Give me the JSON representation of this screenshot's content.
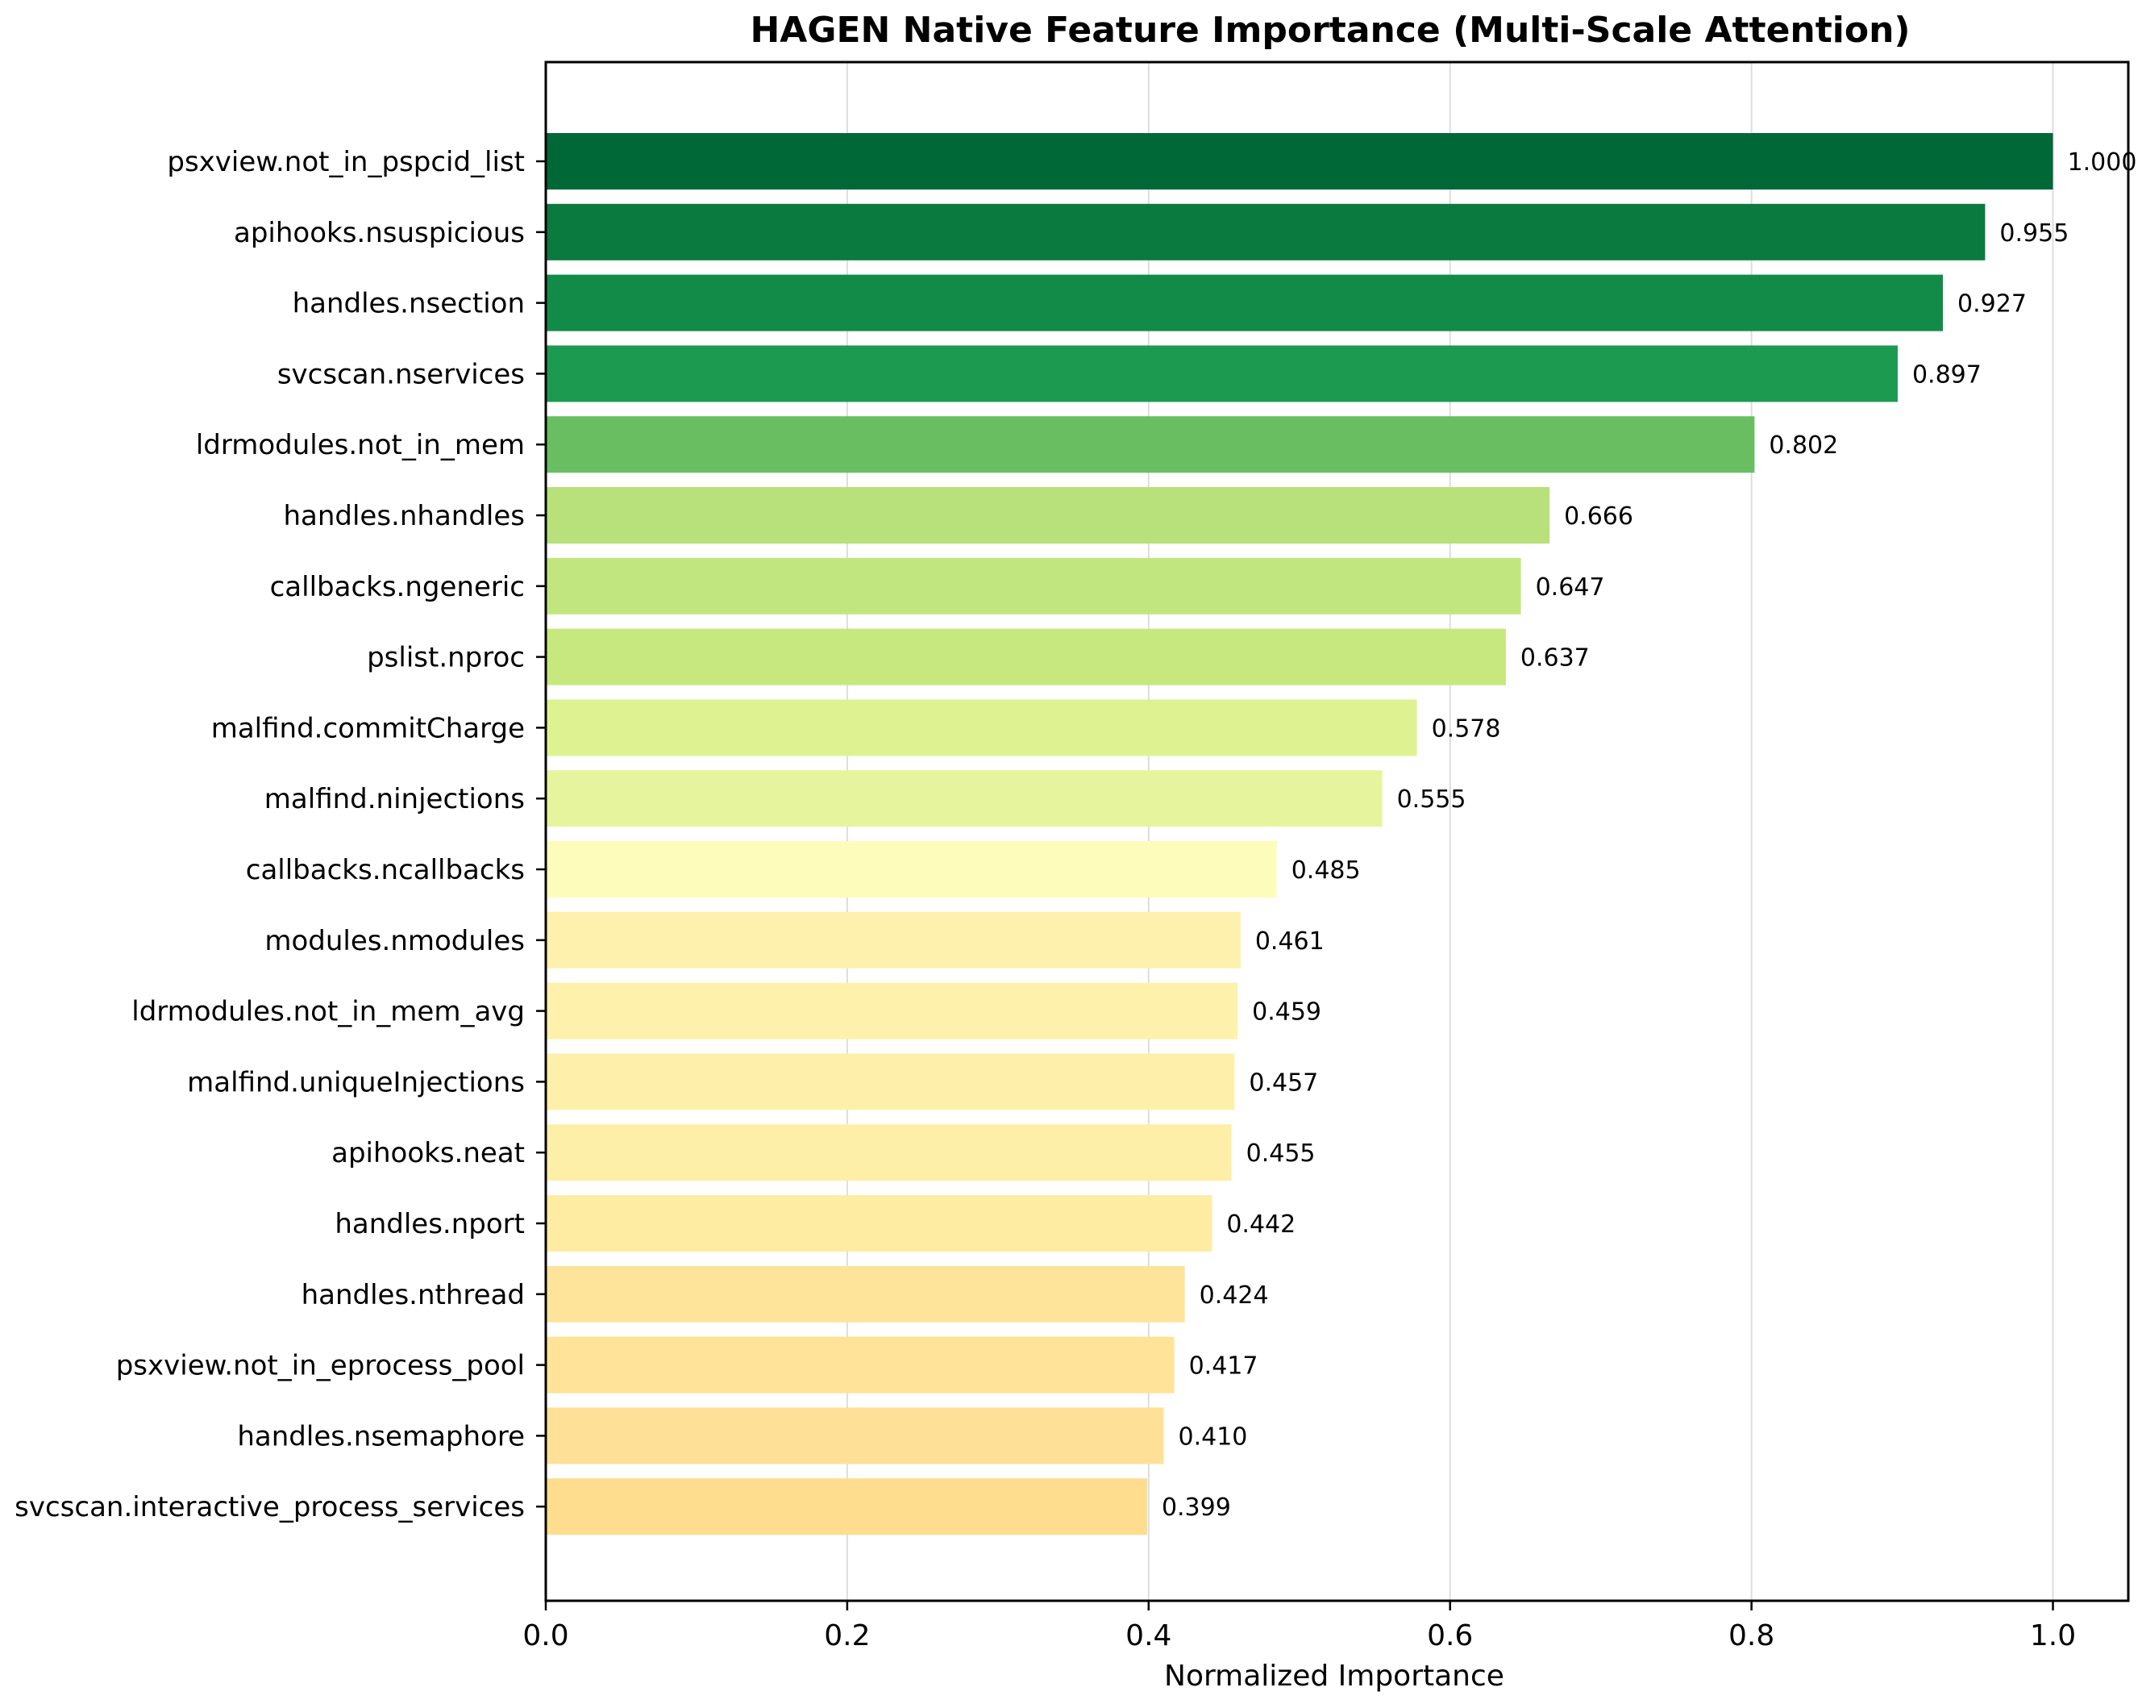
{
  "chart_data": {
    "type": "bar",
    "orientation": "horizontal",
    "title": "HAGEN Native Feature Importance (Multi-Scale Attention)",
    "xlabel": "Normalized Importance",
    "ylabel": "",
    "xlim": [
      0.0,
      1.05
    ],
    "xticks": [
      0.0,
      0.2,
      0.4,
      0.6,
      0.8,
      1.0
    ],
    "xtick_labels": [
      "0.0",
      "0.2",
      "0.4",
      "0.6",
      "0.8",
      "1.0"
    ],
    "grid": "vertical",
    "categories": [
      "psxview.not_in_pspcid_list",
      "apihooks.nsuspicious",
      "handles.nsection",
      "svcscan.nservices",
      "ldrmodules.not_in_mem",
      "handles.nhandles",
      "callbacks.ngeneric",
      "pslist.nproc",
      "malfind.commitCharge",
      "malfind.ninjections",
      "callbacks.ncallbacks",
      "modules.nmodules",
      "ldrmodules.not_in_mem_avg",
      "malfind.uniqueInjections",
      "apihooks.neat",
      "handles.nport",
      "handles.nthread",
      "psxview.not_in_eprocess_pool",
      "handles.nsemaphore",
      "svcscan.interactive_process_services"
    ],
    "values": [
      1.0,
      0.955,
      0.927,
      0.897,
      0.802,
      0.666,
      0.647,
      0.637,
      0.578,
      0.555,
      0.485,
      0.461,
      0.459,
      0.457,
      0.455,
      0.442,
      0.424,
      0.417,
      0.41,
      0.399
    ],
    "value_labels": [
      "1.000",
      "0.955",
      "0.927",
      "0.897",
      "0.802",
      "0.666",
      "0.647",
      "0.637",
      "0.578",
      "0.555",
      "0.485",
      "0.461",
      "0.459",
      "0.457",
      "0.455",
      "0.442",
      "0.424",
      "0.417",
      "0.410",
      "0.399"
    ],
    "colors": [
      "#006837",
      "#0a7a3e",
      "#138b48",
      "#1c9a50",
      "#69be61",
      "#b8e07b",
      "#c2e67f",
      "#c6e87f",
      "#dff292",
      "#e6f59d",
      "#fefcbb",
      "#fef1ad",
      "#fef1ab",
      "#fef0aa",
      "#feefa8",
      "#feeca3",
      "#fee49b",
      "#fee398",
      "#fee096",
      "#fedd8f"
    ]
  }
}
